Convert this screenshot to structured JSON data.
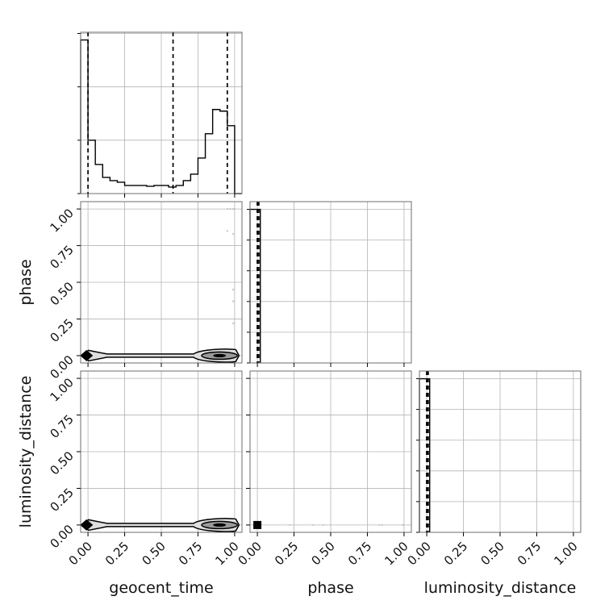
{
  "chart_data": {
    "type": "corner",
    "variables": [
      "geocent_time",
      "phase",
      "luminosity_distance"
    ],
    "axis_labels": {
      "geocent_time": "geocent_time",
      "phase": "phase",
      "luminosity_distance": "luminosity_distance"
    },
    "range": [
      -0.05,
      1.05
    ],
    "ticks": [
      0.0,
      0.25,
      0.5,
      0.75,
      1.0
    ],
    "tick_labels": [
      "0.00",
      "0.25",
      "0.50",
      "0.75",
      "1.00"
    ],
    "grid": true,
    "histograms": {
      "geocent_time": {
        "bin_edges": [
          -0.05,
          0.0,
          0.05,
          0.1,
          0.15,
          0.2,
          0.25,
          0.3,
          0.35,
          0.4,
          0.45,
          0.5,
          0.55,
          0.6,
          0.65,
          0.7,
          0.75,
          0.8,
          0.85,
          0.9,
          0.95,
          1.0,
          1.05
        ],
        "counts": [
          0.95,
          0.33,
          0.18,
          0.1,
          0.08,
          0.07,
          0.05,
          0.05,
          0.05,
          0.045,
          0.05,
          0.05,
          0.04,
          0.05,
          0.08,
          0.12,
          0.22,
          0.37,
          0.52,
          0.51,
          0.42,
          0.0
        ],
        "y_ticks": [
          0.0,
          0.33,
          0.66,
          0.99
        ],
        "quantiles": [
          0.0,
          0.58,
          0.95
        ]
      },
      "phase": {
        "bin_edges": [
          -0.05,
          0.0,
          0.02
        ],
        "counts": [
          1.0,
          1.0
        ],
        "y_ticks": [
          0.0,
          0.2,
          0.4,
          0.6,
          0.8,
          1.0
        ],
        "quantiles": [
          0.0,
          0.0,
          0.01
        ]
      },
      "luminosity_distance": {
        "bin_edges": [
          -0.05,
          0.0,
          0.02
        ],
        "counts": [
          1.0,
          1.0
        ],
        "y_ticks": [
          0.0,
          0.2,
          0.4,
          0.6,
          0.8,
          1.0
        ],
        "quantiles": [
          0.0,
          0.0,
          0.01
        ]
      }
    },
    "scatter": {
      "phase_vs_geocent_time": {
        "x": [
          0.95,
          0.97,
          0.99,
          1.0,
          0.95,
          0.99,
          0.99,
          0.99,
          0.99
        ],
        "y": [
          1.0,
          1.0,
          1.0,
          1.0,
          0.85,
          0.83,
          0.45,
          0.37,
          0.22
        ]
      },
      "luminosity_distance_vs_phase": {
        "x": [
          0.22,
          0.38,
          0.45,
          0.83,
          0.85,
          0.99,
          1.0
        ],
        "y": [
          0.0,
          0.0,
          0.0,
          0.0,
          0.0,
          0.0,
          0.0
        ]
      }
    },
    "contours": {
      "geocent_time_band": {
        "y_center": 0.0,
        "left_blob_x": [
          -0.03,
          0.13
        ],
        "bar_x": [
          0.13,
          0.72
        ],
        "right_blob_x": [
          0.72,
          1.03
        ],
        "half_height": 0.045
      },
      "phase_vs_luminosity_distance_square": {
        "x": 0.0,
        "y": 0.0
      }
    }
  }
}
